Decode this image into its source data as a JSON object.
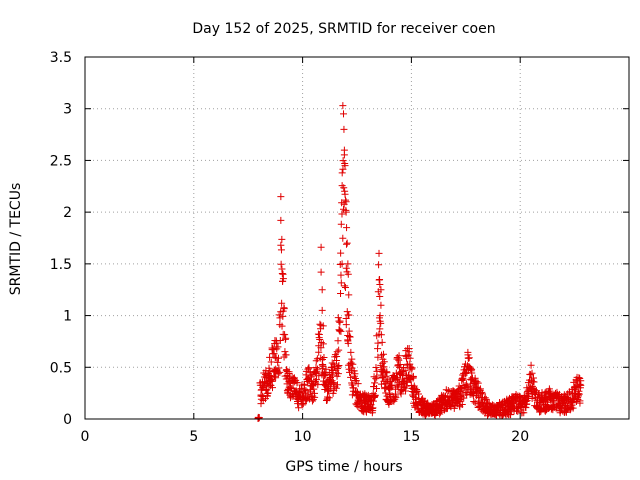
{
  "chart_data": {
    "type": "scatter",
    "title": "Day 152 of 2025, SRMTID for receiver coen",
    "xlabel": "GPS time / hours",
    "ylabel": "SRMTID / TECUs",
    "xlim": [
      0,
      25
    ],
    "ylim": [
      0,
      3.5
    ],
    "xticks": [
      0,
      5,
      10,
      15,
      20
    ],
    "yticks": [
      0,
      0.5,
      1,
      1.5,
      2,
      2.5,
      3,
      3.5
    ],
    "ytick_labels": [
      "0",
      "0.5",
      "1",
      "1.5",
      "2",
      "2.5",
      "3",
      "3.5"
    ],
    "grid": true,
    "marker": "plus",
    "color": "#e00000",
    "profile": [
      [
        7.9,
        0.0
      ],
      [
        8.0,
        0.0
      ],
      [
        8.05,
        0.25
      ],
      [
        8.2,
        0.3
      ],
      [
        8.4,
        0.38
      ],
      [
        8.6,
        0.5
      ],
      [
        8.8,
        0.6
      ],
      [
        8.95,
        0.75
      ],
      [
        9.0,
        1.0
      ],
      [
        9.05,
        1.4
      ],
      [
        9.1,
        1.1
      ],
      [
        9.2,
        0.6
      ],
      [
        9.3,
        0.4
      ],
      [
        9.5,
        0.3
      ],
      [
        9.7,
        0.25
      ],
      [
        9.9,
        0.2
      ],
      [
        10.1,
        0.3
      ],
      [
        10.3,
        0.35
      ],
      [
        10.5,
        0.3
      ],
      [
        10.6,
        0.4
      ],
      [
        10.7,
        0.55
      ],
      [
        10.8,
        0.7
      ],
      [
        10.9,
        0.65
      ],
      [
        11.0,
        0.35
      ],
      [
        11.2,
        0.3
      ],
      [
        11.4,
        0.4
      ],
      [
        11.6,
        0.55
      ],
      [
        11.75,
        1.2
      ],
      [
        11.85,
        2.4
      ],
      [
        11.95,
        1.8
      ],
      [
        12.05,
        1.0
      ],
      [
        12.2,
        0.5
      ],
      [
        12.4,
        0.3
      ],
      [
        12.6,
        0.2
      ],
      [
        12.9,
        0.15
      ],
      [
        13.2,
        0.15
      ],
      [
        13.4,
        0.5
      ],
      [
        13.5,
        1.2
      ],
      [
        13.6,
        0.6
      ],
      [
        13.8,
        0.35
      ],
      [
        14.0,
        0.25
      ],
      [
        14.2,
        0.3
      ],
      [
        14.4,
        0.45
      ],
      [
        14.6,
        0.3
      ],
      [
        14.8,
        0.55
      ],
      [
        15.0,
        0.4
      ],
      [
        15.2,
        0.2
      ],
      [
        15.5,
        0.12
      ],
      [
        15.8,
        0.08
      ],
      [
        16.1,
        0.1
      ],
      [
        16.4,
        0.15
      ],
      [
        16.7,
        0.2
      ],
      [
        17.0,
        0.18
      ],
      [
        17.3,
        0.25
      ],
      [
        17.6,
        0.45
      ],
      [
        17.8,
        0.35
      ],
      [
        18.0,
        0.25
      ],
      [
        18.3,
        0.15
      ],
      [
        18.6,
        0.08
      ],
      [
        18.9,
        0.08
      ],
      [
        19.2,
        0.1
      ],
      [
        19.5,
        0.12
      ],
      [
        19.8,
        0.15
      ],
      [
        20.1,
        0.12
      ],
      [
        20.3,
        0.2
      ],
      [
        20.5,
        0.35
      ],
      [
        20.7,
        0.2
      ],
      [
        20.9,
        0.15
      ],
      [
        21.2,
        0.18
      ],
      [
        21.5,
        0.2
      ],
      [
        21.8,
        0.15
      ],
      [
        22.1,
        0.15
      ],
      [
        22.4,
        0.2
      ],
      [
        22.6,
        0.3
      ],
      [
        22.8,
        0.25
      ]
    ],
    "outliers": [
      [
        9.0,
        2.15
      ],
      [
        9.0,
        1.92
      ],
      [
        9.0,
        1.68
      ],
      [
        9.05,
        1.45
      ],
      [
        9.1,
        1.4
      ],
      [
        10.85,
        1.66
      ],
      [
        10.85,
        1.42
      ],
      [
        10.9,
        1.25
      ],
      [
        10.9,
        1.05
      ],
      [
        10.95,
        0.9
      ],
      [
        11.85,
        3.03
      ],
      [
        11.88,
        2.95
      ],
      [
        11.9,
        2.8
      ],
      [
        11.92,
        2.6
      ],
      [
        11.95,
        2.45
      ],
      [
        12.0,
        2.1
      ],
      [
        12.0,
        2.0
      ],
      [
        12.02,
        1.85
      ],
      [
        12.05,
        1.7
      ],
      [
        12.08,
        1.5
      ],
      [
        13.55,
        1.3
      ],
      [
        13.6,
        1.25
      ],
      [
        13.6,
        1.1
      ],
      [
        17.6,
        0.62
      ],
      [
        20.5,
        0.52
      ],
      [
        22.7,
        0.4
      ],
      [
        14.9,
        0.65
      ],
      [
        14.85,
        0.62
      ],
      [
        12.1,
        1.4
      ],
      [
        12.12,
        1.2
      ]
    ]
  }
}
